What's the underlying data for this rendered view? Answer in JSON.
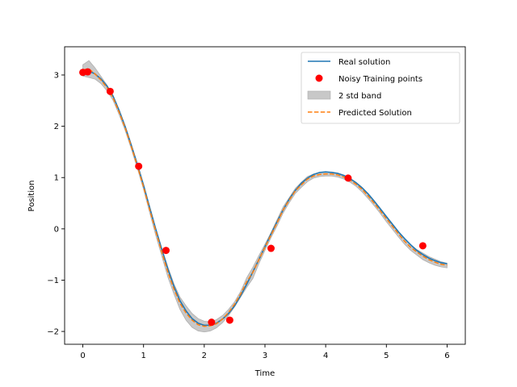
{
  "chart_data": {
    "type": "line",
    "title": "",
    "xlabel": "Time",
    "ylabel": "Position",
    "xlim": [
      -0.3,
      6.3
    ],
    "ylim": [
      -2.25,
      3.55
    ],
    "xticks": [
      0,
      1,
      2,
      3,
      4,
      5,
      6
    ],
    "yticks": [
      -2,
      -1,
      0,
      1,
      2,
      3
    ],
    "ytick_labels": [
      "−2",
      "−1",
      "0",
      "1",
      "2",
      "3"
    ],
    "grid": false,
    "legend_position": "top-right",
    "legend": [
      {
        "label": "Real solution",
        "kind": "line",
        "color": "#1f77b4"
      },
      {
        "label": "Noisy Training points",
        "kind": "marker",
        "color": "#ff0000"
      },
      {
        "label": "2 std band",
        "kind": "patch",
        "color": "#c8c8c8"
      },
      {
        "label": "Predicted Solution",
        "kind": "dashed",
        "color": "#ff7f0e"
      }
    ],
    "series": [
      {
        "name": "Real solution",
        "color": "#1f77b4",
        "x": [
          0,
          0.1,
          0.2,
          0.3,
          0.4,
          0.5,
          0.6,
          0.7,
          0.8,
          0.9,
          1.0,
          1.1,
          1.2,
          1.3,
          1.4,
          1.5,
          1.6,
          1.7,
          1.8,
          1.9,
          2.0,
          2.1,
          2.2,
          2.3,
          2.4,
          2.5,
          2.6,
          2.7,
          2.8,
          2.9,
          3.0,
          3.1,
          3.2,
          3.3,
          3.4,
          3.5,
          3.6,
          3.7,
          3.8,
          3.9,
          4.0,
          4.1,
          4.2,
          4.3,
          4.4,
          4.5,
          4.6,
          4.7,
          4.8,
          4.9,
          5.0,
          5.1,
          5.2,
          5.3,
          5.4,
          5.5,
          5.6,
          5.7,
          5.8,
          5.9,
          6.0
        ],
        "y": [
          3.06,
          3.08,
          3.02,
          2.92,
          2.78,
          2.58,
          2.3,
          1.98,
          1.62,
          1.25,
          0.85,
          0.42,
          0.0,
          -0.4,
          -0.78,
          -1.12,
          -1.4,
          -1.6,
          -1.75,
          -1.84,
          -1.88,
          -1.88,
          -1.84,
          -1.76,
          -1.65,
          -1.5,
          -1.3,
          -1.08,
          -0.84,
          -0.6,
          -0.35,
          -0.1,
          0.14,
          0.37,
          0.58,
          0.75,
          0.89,
          0.99,
          1.06,
          1.1,
          1.11,
          1.1,
          1.08,
          1.04,
          0.98,
          0.9,
          0.8,
          0.68,
          0.54,
          0.39,
          0.24,
          0.09,
          -0.06,
          -0.19,
          -0.31,
          -0.42,
          -0.5,
          -0.57,
          -0.62,
          -0.66,
          -0.68
        ]
      },
      {
        "name": "Predicted Solution",
        "color": "#ff7f0e",
        "x": [
          0,
          0.1,
          0.2,
          0.3,
          0.4,
          0.5,
          0.6,
          0.7,
          0.8,
          0.9,
          1.0,
          1.1,
          1.2,
          1.3,
          1.4,
          1.5,
          1.6,
          1.7,
          1.8,
          1.9,
          2.0,
          2.1,
          2.2,
          2.3,
          2.4,
          2.5,
          2.6,
          2.7,
          2.8,
          2.9,
          3.0,
          3.1,
          3.2,
          3.3,
          3.4,
          3.5,
          3.6,
          3.7,
          3.8,
          3.9,
          4.0,
          4.1,
          4.2,
          4.3,
          4.4,
          4.5,
          4.6,
          4.7,
          4.8,
          4.9,
          5.0,
          5.1,
          5.2,
          5.3,
          5.4,
          5.5,
          5.6,
          5.7,
          5.8,
          5.9,
          6.0
        ],
        "y": [
          3.1,
          3.12,
          3.02,
          2.9,
          2.75,
          2.55,
          2.27,
          1.96,
          1.6,
          1.22,
          0.82,
          0.38,
          -0.04,
          -0.45,
          -0.84,
          -1.17,
          -1.45,
          -1.64,
          -1.78,
          -1.87,
          -1.9,
          -1.89,
          -1.85,
          -1.76,
          -1.63,
          -1.47,
          -1.27,
          -1.03,
          -0.85,
          -0.6,
          -0.36,
          -0.12,
          0.12,
          0.37,
          0.56,
          0.74,
          0.86,
          0.97,
          1.03,
          1.06,
          1.07,
          1.07,
          1.05,
          1.01,
          0.95,
          0.87,
          0.77,
          0.64,
          0.5,
          0.35,
          0.2,
          0.05,
          -0.1,
          -0.24,
          -0.36,
          -0.45,
          -0.53,
          -0.6,
          -0.65,
          -0.69,
          -0.71
        ]
      }
    ],
    "band": {
      "name": "2 std band",
      "color": "#c8c8c8",
      "x": [
        0,
        0.1,
        0.2,
        0.3,
        0.4,
        0.5,
        0.6,
        0.7,
        0.8,
        0.9,
        1.0,
        1.1,
        1.2,
        1.3,
        1.4,
        1.5,
        1.6,
        1.7,
        1.8,
        1.9,
        2.0,
        2.1,
        2.2,
        2.3,
        2.4,
        2.5,
        2.6,
        2.7,
        2.8,
        2.9,
        3.0,
        3.1,
        3.2,
        3.3,
        3.4,
        3.5,
        3.6,
        3.7,
        3.8,
        3.9,
        4.0,
        4.1,
        4.2,
        4.3,
        4.4,
        4.5,
        4.6,
        4.7,
        4.8,
        4.9,
        5.0,
        5.1,
        5.2,
        5.3,
        5.4,
        5.5,
        5.6,
        5.7,
        5.8,
        5.9,
        6.0
      ],
      "lower": [
        2.98,
        2.95,
        2.92,
        2.83,
        2.69,
        2.5,
        2.22,
        1.91,
        1.55,
        1.17,
        0.77,
        0.32,
        -0.12,
        -0.53,
        -0.94,
        -1.27,
        -1.57,
        -1.78,
        -1.92,
        -1.99,
        -2.01,
        -1.99,
        -1.93,
        -1.83,
        -1.69,
        -1.52,
        -1.33,
        -1.14,
        -0.97,
        -0.68,
        -0.42,
        -0.17,
        0.06,
        0.31,
        0.51,
        0.69,
        0.81,
        0.92,
        0.99,
        1.02,
        1.03,
        1.03,
        1.01,
        0.97,
        0.91,
        0.83,
        0.72,
        0.59,
        0.45,
        0.3,
        0.14,
        -0.01,
        -0.16,
        -0.3,
        -0.42,
        -0.51,
        -0.6,
        -0.66,
        -0.71,
        -0.74,
        -0.76
      ],
      "upper": [
        3.2,
        3.28,
        3.14,
        2.97,
        2.8,
        2.6,
        2.32,
        2.01,
        1.65,
        1.27,
        0.87,
        0.44,
        0.02,
        -0.37,
        -0.74,
        -1.07,
        -1.33,
        -1.5,
        -1.65,
        -1.75,
        -1.8,
        -1.81,
        -1.77,
        -1.69,
        -1.57,
        -1.42,
        -1.22,
        -0.95,
        -0.75,
        -0.52,
        -0.3,
        -0.07,
        0.18,
        0.43,
        0.61,
        0.79,
        0.91,
        1.02,
        1.07,
        1.1,
        1.11,
        1.11,
        1.09,
        1.05,
        0.99,
        0.91,
        0.81,
        0.69,
        0.55,
        0.4,
        0.25,
        0.1,
        -0.05,
        -0.19,
        -0.31,
        -0.4,
        -0.47,
        -0.54,
        -0.59,
        -0.64,
        -0.67
      ]
    },
    "points": {
      "name": "Noisy Training points",
      "color": "#ff0000",
      "x": [
        0.0,
        0.08,
        0.45,
        0.92,
        1.37,
        2.12,
        2.42,
        3.1,
        4.37,
        5.6
      ],
      "y": [
        3.05,
        3.06,
        2.68,
        1.22,
        -0.42,
        -1.82,
        -1.78,
        -0.38,
        0.99,
        -0.33
      ]
    }
  }
}
